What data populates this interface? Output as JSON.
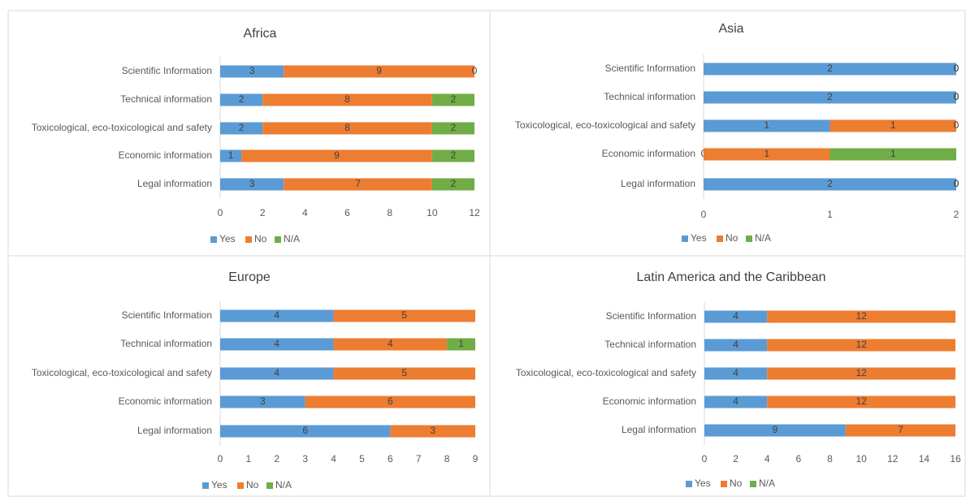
{
  "chart_data": [
    {
      "type": "stacked_barh",
      "title": "Africa",
      "categories": [
        "Scientific Information",
        "Technical information",
        "Toxicological, eco-toxicological and safety",
        "Economic information",
        "Legal information"
      ],
      "series": [
        {
          "name": "Yes",
          "color": "#5b9bd5",
          "values": [
            3,
            2,
            2,
            1,
            3
          ]
        },
        {
          "name": "No",
          "color": "#ed7d31",
          "values": [
            9,
            8,
            8,
            9,
            7
          ]
        },
        {
          "name": "N/A",
          "color": "#70ad47",
          "values": [
            0,
            2,
            2,
            2,
            2
          ]
        }
      ],
      "xlim": [
        0,
        12
      ],
      "xticks": [
        0,
        2,
        4,
        6,
        8,
        10,
        12
      ],
      "show_zero_labels": true,
      "legend": "bottom"
    },
    {
      "type": "stacked_barh",
      "title": "Asia",
      "categories": [
        "Scientific Information",
        "Technical information",
        "Toxicological, eco-toxicological and safety",
        "Economic information",
        "Legal information"
      ],
      "series": [
        {
          "name": "Yes",
          "color": "#5b9bd5",
          "values": [
            2,
            2,
            1,
            0,
            2
          ]
        },
        {
          "name": "No",
          "color": "#ed7d31",
          "values": [
            0,
            0,
            1,
            1,
            0
          ]
        },
        {
          "name": "N/A",
          "color": "#70ad47",
          "values": [
            0,
            0,
            0,
            1,
            0
          ]
        }
      ],
      "xlim": [
        0,
        2
      ],
      "xticks": [
        0,
        1,
        2
      ],
      "show_zero_labels": true,
      "legend": "bottom"
    },
    {
      "type": "stacked_barh",
      "title": "Europe",
      "categories": [
        "Scientific Information",
        "Technical information",
        "Toxicological, eco-toxicological and safety",
        "Economic information",
        "Legal information"
      ],
      "series": [
        {
          "name": "Yes",
          "color": "#5b9bd5",
          "values": [
            4,
            4,
            4,
            3,
            6
          ]
        },
        {
          "name": "No",
          "color": "#ed7d31",
          "values": [
            5,
            4,
            5,
            6,
            3
          ]
        },
        {
          "name": "N/A",
          "color": "#70ad47",
          "values": [
            0,
            1,
            0,
            0,
            0
          ]
        }
      ],
      "xlim": [
        0,
        9
      ],
      "xticks": [
        0,
        1,
        2,
        3,
        4,
        5,
        6,
        7,
        8,
        9
      ],
      "show_zero_labels": false,
      "legend": "bottom"
    },
    {
      "type": "stacked_barh",
      "title": "Latin America and the Caribbean",
      "categories": [
        "Scientific Information",
        "Technical information",
        "Toxicological, eco-toxicological and safety",
        "Economic information",
        "Legal information"
      ],
      "series": [
        {
          "name": "Yes",
          "color": "#5b9bd5",
          "values": [
            4,
            4,
            4,
            4,
            9
          ]
        },
        {
          "name": "No",
          "color": "#ed7d31",
          "values": [
            12,
            12,
            12,
            12,
            7
          ]
        },
        {
          "name": "N/A",
          "color": "#70ad47",
          "values": [
            0,
            0,
            0,
            0,
            0
          ]
        }
      ],
      "xlim": [
        0,
        16
      ],
      "xticks": [
        0,
        2,
        4,
        6,
        8,
        10,
        12,
        14,
        16
      ],
      "show_zero_labels": false,
      "legend": "bottom"
    }
  ]
}
